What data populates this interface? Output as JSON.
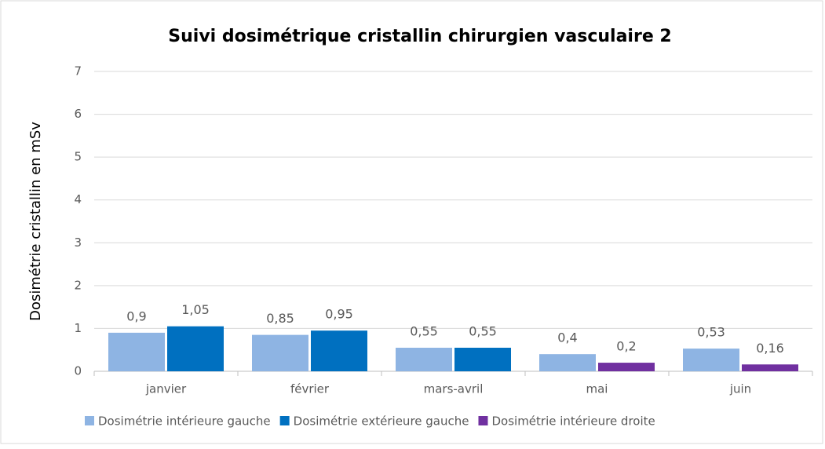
{
  "chart_data": {
    "type": "bar",
    "title": "Suivi dosimétrique cristallin chirurgien vasculaire 2",
    "y_label": "Dosimétrie cristallin en mSv",
    "categories": [
      "janvier",
      "février",
      "mars-avril",
      "mai",
      "juin"
    ],
    "series": [
      {
        "name": "Dosimétrie intérieure gauche",
        "color": "#8eb4e3",
        "values": [
          0.9,
          0.85,
          0.55,
          0.4,
          0.53
        ],
        "value_labels": [
          "0,9",
          "0,85",
          "0,55",
          "0,4",
          "0,53"
        ]
      },
      {
        "name": "Dosimétrie extérieure gauche",
        "color": "#0070c0",
        "values": [
          1.05,
          0.95,
          0.55,
          null,
          null
        ],
        "value_labels": [
          "1,05",
          "0,95",
          "0,55",
          null,
          null
        ]
      },
      {
        "name": "Dosimétrie intérieure droite",
        "color": "#7030a0",
        "values": [
          null,
          null,
          null,
          0.2,
          0.16
        ],
        "value_labels": [
          null,
          null,
          null,
          "0,2",
          "0,16"
        ]
      }
    ],
    "ylim": [
      0,
      7
    ],
    "yticks": [
      0,
      1,
      2,
      3,
      4,
      5,
      6,
      7
    ],
    "grid": true,
    "legend": "bottom"
  }
}
